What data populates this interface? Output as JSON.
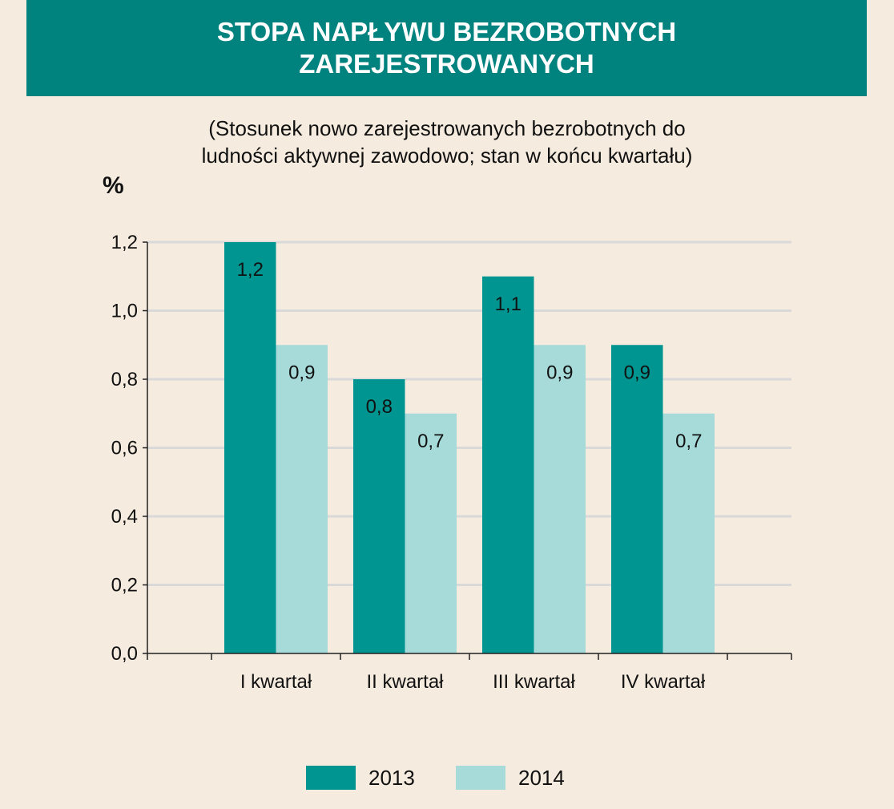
{
  "title": {
    "line1": "STOPA NAPŁYWU BEZROBOTNYCH",
    "line2": "ZAREJESTROWANYCH"
  },
  "subtitle": {
    "line1": "(Stosunek nowo zarejestrowanych bezrobotnych do",
    "line2": "ludności aktywnej zawodowo; stan w końcu kwartału)"
  },
  "colors": {
    "banner": "#00827f",
    "background": "#f5ebde",
    "series_2013": "#009590",
    "series_2014": "#a6dbd9",
    "grid": "#d9d9d9"
  },
  "chart_data": {
    "type": "bar",
    "title": "STOPA NAPŁYWU BEZROBOTNYCH ZAREJESTROWANYCH",
    "subtitle": "(Stosunek nowo zarejestrowanych bezrobotnych do ludności aktywnej zawodowo; stan w końcu kwartału)",
    "ylabel": "%",
    "xlabel": "",
    "categories": [
      "I kwartał",
      "II kwartał",
      "III kwartał",
      "IV kwartał"
    ],
    "series": [
      {
        "name": "2013",
        "values": [
          1.2,
          0.8,
          1.1,
          0.9
        ],
        "labels": [
          "1,2",
          "0,8",
          "1,1",
          "0,9"
        ]
      },
      {
        "name": "2014",
        "values": [
          0.9,
          0.7,
          0.9,
          0.7
        ],
        "labels": [
          "0,9",
          "0,7",
          "0,9",
          "0,7"
        ]
      }
    ],
    "ylim": [
      0,
      1.2
    ],
    "yticks": [
      0,
      0.2,
      0.4,
      0.6,
      0.8,
      1.0,
      1.2
    ],
    "ytick_labels": [
      "0,0",
      "0,2",
      "0,4",
      "0,6",
      "0,8",
      "1,0",
      "1,2"
    ],
    "grid": true,
    "legend_position": "bottom-center"
  }
}
